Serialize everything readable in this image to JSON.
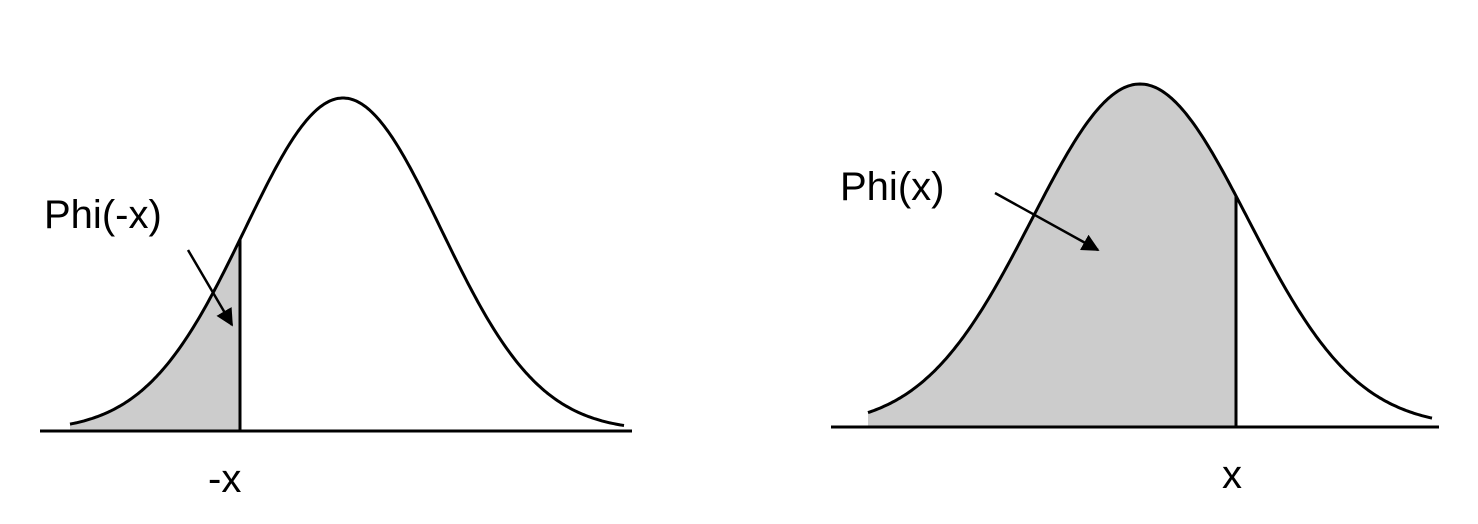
{
  "colors": {
    "shade": "#cccccc",
    "line": "#000000",
    "background": "#ffffff"
  },
  "panels": [
    {
      "area_label": "Phi(-x)",
      "cut_label": "-x",
      "shaded_region": "left tail"
    },
    {
      "area_label": "Phi(x)",
      "cut_label": "x",
      "shaded_region": "left of cut"
    }
  ]
}
